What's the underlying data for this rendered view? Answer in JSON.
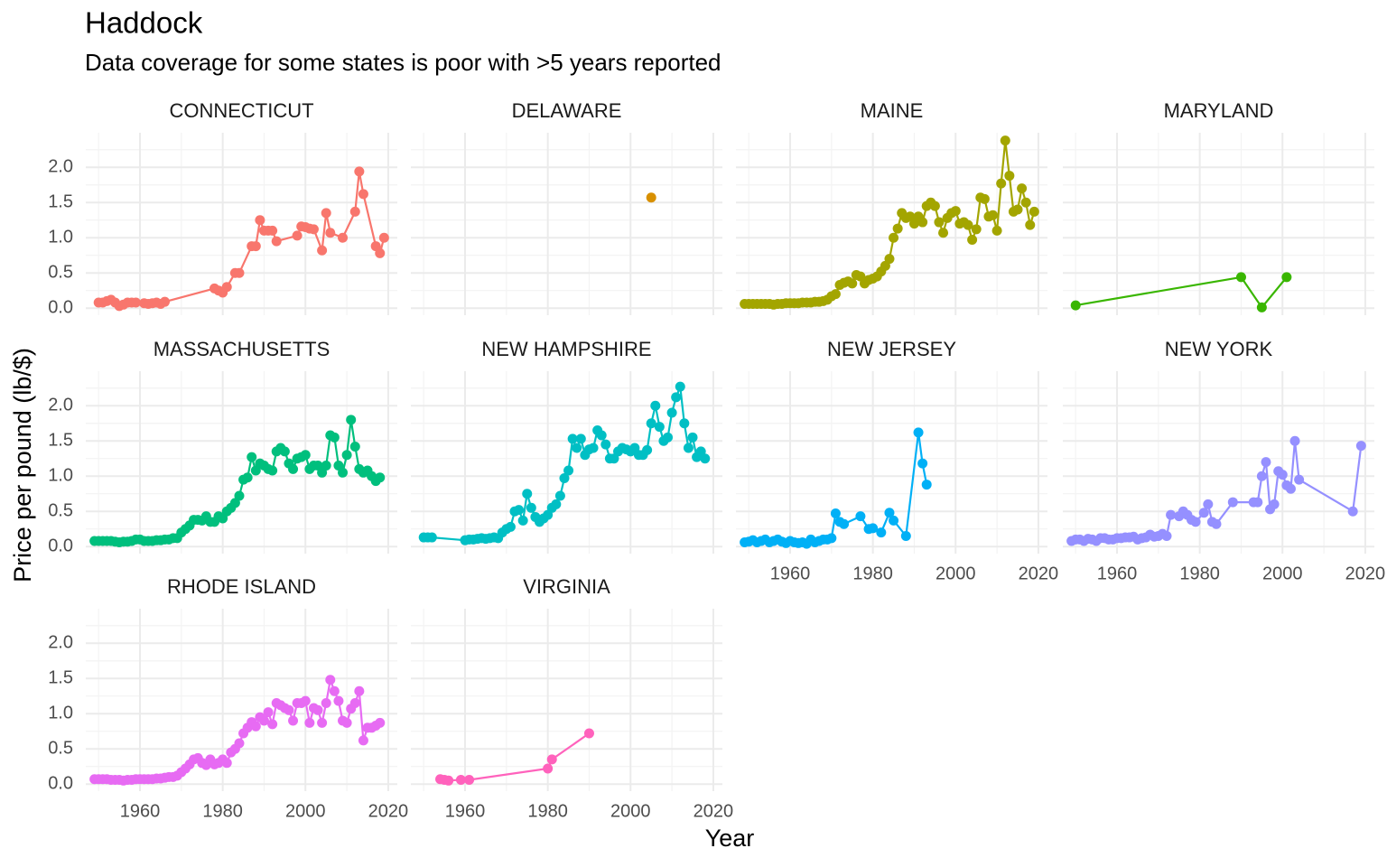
{
  "chart_data": {
    "type": "line",
    "title": "Haddock",
    "subtitle": "Data coverage for some states is poor with >5 years reported",
    "xlabel": "Year",
    "ylabel": "Price per pound (lb/$)",
    "xlim": [
      1946.9,
      2022.2
    ],
    "ylim": [
      -0.1,
      2.49
    ],
    "xticks": [
      1960,
      1980,
      2000,
      2020
    ],
    "yticks": [
      {
        "value": 0,
        "label": "0.0"
      },
      {
        "value": 0.5,
        "label": "0.5"
      },
      {
        "value": 1,
        "label": "1.0"
      },
      {
        "value": 1.5,
        "label": "1.5"
      },
      {
        "value": 2,
        "label": "2.0"
      }
    ],
    "grid": true,
    "panels": [
      {
        "name": "CONNECTICUT",
        "color": "#F8766D",
        "x": [
          1950,
          1951,
          1952,
          1953,
          1954,
          1955,
          1956,
          1957,
          1958,
          1959,
          1961,
          1962,
          1963,
          1964,
          1965,
          1966,
          1978,
          1979,
          1980,
          1981,
          1983,
          1984,
          1987,
          1988,
          1989,
          1990,
          1991,
          1992,
          1993,
          1998,
          1999,
          2000,
          2001,
          2002,
          2004,
          2005,
          2006,
          2009,
          2012,
          2013,
          2014,
          2017,
          2018,
          2019
        ],
        "values": [
          0.08,
          0.08,
          0.1,
          0.12,
          0.08,
          0.03,
          0.05,
          0.08,
          0.08,
          0.08,
          0.07,
          0.06,
          0.07,
          0.08,
          0.06,
          0.09,
          0.28,
          0.25,
          0.22,
          0.3,
          0.5,
          0.5,
          0.88,
          0.88,
          1.25,
          1.1,
          1.1,
          1.1,
          0.95,
          1.03,
          1.16,
          1.15,
          1.13,
          1.12,
          0.82,
          1.35,
          1.07,
          1.0,
          1.37,
          1.94,
          1.62,
          0.88,
          0.78,
          1.0
        ]
      },
      {
        "name": "DELAWARE",
        "color": "#D89000",
        "x": [
          2005
        ],
        "values": [
          1.57
        ]
      },
      {
        "name": "MAINE",
        "color": "#A3A500",
        "x": [
          1949,
          1950,
          1951,
          1952,
          1953,
          1954,
          1955,
          1956,
          1957,
          1958,
          1959,
          1960,
          1961,
          1962,
          1963,
          1964,
          1965,
          1966,
          1967,
          1968,
          1969,
          1970,
          1971,
          1972,
          1973,
          1974,
          1975,
          1976,
          1977,
          1978,
          1979,
          1980,
          1981,
          1982,
          1983,
          1984,
          1985,
          1986,
          1987,
          1988,
          1989,
          1990,
          1991,
          1992,
          1993,
          1994,
          1995,
          1996,
          1997,
          1998,
          1999,
          2000,
          2001,
          2002,
          2003,
          2004,
          2005,
          2006,
          2007,
          2008,
          2009,
          2010,
          2011,
          2012,
          2013,
          2014,
          2015,
          2016,
          2017,
          2018,
          2019
        ],
        "values": [
          0.06,
          0.06,
          0.06,
          0.06,
          0.06,
          0.06,
          0.06,
          0.05,
          0.06,
          0.06,
          0.07,
          0.07,
          0.07,
          0.07,
          0.08,
          0.08,
          0.08,
          0.09,
          0.09,
          0.1,
          0.12,
          0.17,
          0.2,
          0.33,
          0.36,
          0.38,
          0.35,
          0.47,
          0.45,
          0.35,
          0.4,
          0.42,
          0.45,
          0.52,
          0.6,
          0.7,
          1.0,
          1.13,
          1.35,
          1.28,
          1.3,
          1.2,
          1.3,
          1.22,
          1.45,
          1.5,
          1.45,
          1.22,
          1.07,
          1.28,
          1.35,
          1.38,
          1.2,
          1.22,
          1.18,
          0.97,
          1.12,
          1.57,
          1.55,
          1.3,
          1.32,
          1.1,
          1.77,
          2.38,
          1.88,
          1.37,
          1.4,
          1.7,
          1.5,
          1.18,
          1.37
        ]
      },
      {
        "name": "MARYLAND",
        "color": "#39B600",
        "x": [
          1950,
          1990,
          1995,
          2001
        ],
        "values": [
          0.04,
          0.44,
          0.01,
          0.44
        ]
      },
      {
        "name": "MASSACHUSETTS",
        "color": "#00BF7D",
        "x": [
          1949,
          1950,
          1951,
          1952,
          1953,
          1954,
          1955,
          1956,
          1957,
          1958,
          1959,
          1960,
          1961,
          1962,
          1963,
          1964,
          1965,
          1966,
          1967,
          1968,
          1969,
          1970,
          1971,
          1972,
          1973,
          1974,
          1975,
          1976,
          1977,
          1978,
          1979,
          1980,
          1981,
          1982,
          1983,
          1984,
          1985,
          1986,
          1987,
          1988,
          1989,
          1990,
          1991,
          1992,
          1993,
          1994,
          1995,
          1996,
          1997,
          1998,
          1999,
          2000,
          2001,
          2002,
          2003,
          2004,
          2005,
          2006,
          2007,
          2008,
          2009,
          2010,
          2011,
          2012,
          2013,
          2014,
          2015,
          2016,
          2017,
          2018
        ],
        "values": [
          0.08,
          0.08,
          0.08,
          0.08,
          0.08,
          0.07,
          0.06,
          0.07,
          0.07,
          0.08,
          0.1,
          0.1,
          0.08,
          0.08,
          0.08,
          0.09,
          0.09,
          0.1,
          0.1,
          0.12,
          0.12,
          0.2,
          0.25,
          0.3,
          0.38,
          0.38,
          0.37,
          0.43,
          0.35,
          0.35,
          0.43,
          0.4,
          0.5,
          0.55,
          0.62,
          0.72,
          0.95,
          0.98,
          1.27,
          1.08,
          1.18,
          1.15,
          1.1,
          1.08,
          1.35,
          1.4,
          1.35,
          1.18,
          1.1,
          1.25,
          1.27,
          1.3,
          1.1,
          1.15,
          1.15,
          1.05,
          1.15,
          1.58,
          1.55,
          1.15,
          1.05,
          1.3,
          1.8,
          1.42,
          1.1,
          1.05,
          1.08,
          1.0,
          0.93,
          0.98
        ]
      },
      {
        "name": "NEW HAMPSHIRE",
        "color": "#00BFC4",
        "x": [
          1950,
          1951,
          1952,
          1960,
          1961,
          1962,
          1963,
          1964,
          1965,
          1966,
          1967,
          1968,
          1969,
          1970,
          1971,
          1972,
          1973,
          1974,
          1975,
          1976,
          1977,
          1978,
          1979,
          1980,
          1981,
          1982,
          1983,
          1984,
          1985,
          1986,
          1987,
          1988,
          1989,
          1990,
          1991,
          1992,
          1993,
          1994,
          1995,
          1996,
          1997,
          1998,
          1999,
          2000,
          2001,
          2002,
          2003,
          2004,
          2005,
          2006,
          2007,
          2008,
          2009,
          2010,
          2011,
          2012,
          2013,
          2014,
          2015,
          2016,
          2017,
          2018
        ],
        "values": [
          0.13,
          0.13,
          0.13,
          0.09,
          0.1,
          0.1,
          0.11,
          0.12,
          0.11,
          0.12,
          0.13,
          0.12,
          0.2,
          0.25,
          0.28,
          0.5,
          0.52,
          0.37,
          0.75,
          0.55,
          0.42,
          0.35,
          0.4,
          0.45,
          0.55,
          0.6,
          0.72,
          0.97,
          1.08,
          1.53,
          1.4,
          1.53,
          1.3,
          1.38,
          1.4,
          1.65,
          1.58,
          1.45,
          1.25,
          1.25,
          1.35,
          1.4,
          1.38,
          1.35,
          1.4,
          1.3,
          1.3,
          1.37,
          1.75,
          2.0,
          1.7,
          1.5,
          1.55,
          1.9,
          2.12,
          2.27,
          1.75,
          1.4,
          1.55,
          1.27,
          1.35,
          1.25
        ]
      },
      {
        "name": "NEW JERSEY",
        "color": "#00B0F6",
        "x": [
          1949,
          1950,
          1951,
          1952,
          1953,
          1954,
          1955,
          1956,
          1957,
          1958,
          1959,
          1960,
          1961,
          1962,
          1963,
          1964,
          1965,
          1966,
          1967,
          1968,
          1969,
          1970,
          1971,
          1972,
          1973,
          1977,
          1979,
          1980,
          1982,
          1984,
          1985,
          1988,
          1991,
          1992,
          1993
        ],
        "values": [
          0.06,
          0.07,
          0.09,
          0.06,
          0.08,
          0.1,
          0.06,
          0.08,
          0.1,
          0.07,
          0.05,
          0.08,
          0.06,
          0.05,
          0.06,
          0.04,
          0.1,
          0.06,
          0.08,
          0.1,
          0.1,
          0.12,
          0.47,
          0.35,
          0.32,
          0.43,
          0.25,
          0.26,
          0.2,
          0.48,
          0.37,
          0.15,
          1.62,
          1.18,
          0.88
        ]
      },
      {
        "name": "NEW YORK",
        "color": "#9590FF",
        "x": [
          1949,
          1950,
          1951,
          1952,
          1953,
          1954,
          1955,
          1956,
          1957,
          1958,
          1959,
          1960,
          1961,
          1962,
          1963,
          1964,
          1965,
          1966,
          1967,
          1968,
          1969,
          1970,
          1971,
          1972,
          1973,
          1975,
          1976,
          1977,
          1978,
          1979,
          1981,
          1982,
          1983,
          1984,
          1988,
          1993,
          1994,
          1995,
          1996,
          1997,
          1998,
          1999,
          2000,
          2001,
          2002,
          2003,
          2004,
          2017,
          2019
        ],
        "values": [
          0.08,
          0.1,
          0.1,
          0.08,
          0.11,
          0.1,
          0.08,
          0.12,
          0.12,
          0.1,
          0.1,
          0.12,
          0.12,
          0.13,
          0.13,
          0.14,
          0.1,
          0.12,
          0.13,
          0.17,
          0.14,
          0.15,
          0.18,
          0.15,
          0.45,
          0.43,
          0.5,
          0.45,
          0.38,
          0.35,
          0.48,
          0.6,
          0.35,
          0.32,
          0.63,
          0.63,
          0.63,
          1.0,
          1.2,
          0.53,
          0.6,
          1.07,
          1.02,
          0.87,
          0.82,
          1.5,
          0.95,
          0.5,
          1.43
        ]
      },
      {
        "name": "RHODE ISLAND",
        "color": "#E76BF3",
        "x": [
          1949,
          1950,
          1951,
          1952,
          1953,
          1954,
          1955,
          1956,
          1957,
          1958,
          1959,
          1960,
          1961,
          1962,
          1963,
          1964,
          1965,
          1966,
          1967,
          1968,
          1969,
          1970,
          1971,
          1972,
          1973,
          1974,
          1975,
          1976,
          1977,
          1978,
          1979,
          1980,
          1981,
          1982,
          1983,
          1984,
          1985,
          1986,
          1987,
          1988,
          1989,
          1990,
          1991,
          1992,
          1993,
          1994,
          1995,
          1996,
          1997,
          1998,
          1999,
          2000,
          2001,
          2002,
          2003,
          2004,
          2005,
          2006,
          2007,
          2008,
          2009,
          2010,
          2011,
          2012,
          2013,
          2014,
          2015,
          2016,
          2017,
          2018
        ],
        "values": [
          0.07,
          0.07,
          0.07,
          0.07,
          0.06,
          0.06,
          0.06,
          0.05,
          0.06,
          0.06,
          0.07,
          0.07,
          0.07,
          0.07,
          0.07,
          0.08,
          0.08,
          0.09,
          0.1,
          0.1,
          0.12,
          0.17,
          0.22,
          0.28,
          0.35,
          0.37,
          0.3,
          0.27,
          0.35,
          0.28,
          0.3,
          0.35,
          0.3,
          0.45,
          0.5,
          0.58,
          0.72,
          0.8,
          0.88,
          0.82,
          0.95,
          0.9,
          1.02,
          0.85,
          1.15,
          1.12,
          1.08,
          1.05,
          0.9,
          1.15,
          1.15,
          1.18,
          0.87,
          1.08,
          1.05,
          0.87,
          1.15,
          1.48,
          1.32,
          1.18,
          0.9,
          0.87,
          1.07,
          1.15,
          1.32,
          0.62,
          0.8,
          0.8,
          0.83,
          0.87
        ]
      },
      {
        "name": "VIRGINIA",
        "color": "#FF62BC",
        "x": [
          1954,
          1955,
          1956,
          1959,
          1961,
          1980,
          1981,
          1990
        ],
        "values": [
          0.07,
          0.06,
          0.05,
          0.06,
          0.06,
          0.22,
          0.35,
          0.72
        ]
      }
    ]
  }
}
